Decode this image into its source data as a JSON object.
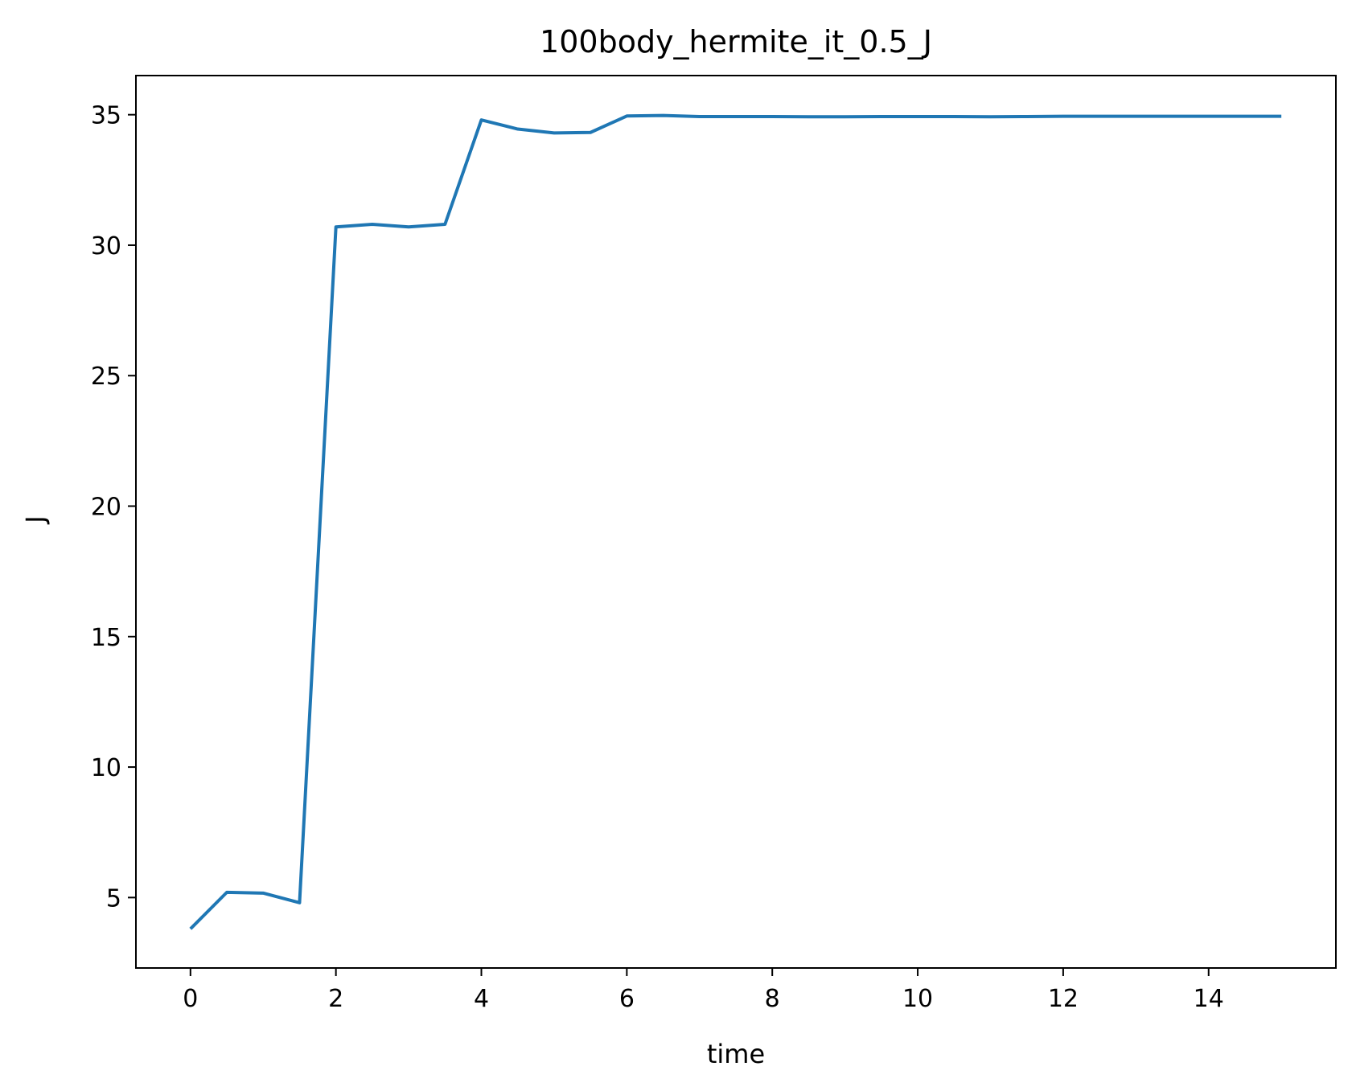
{
  "chart_data": {
    "type": "line",
    "title": "100body_hermite_it_0.5_J",
    "xlabel": "time",
    "ylabel": "J",
    "xlim": [
      -0.75,
      15.75
    ],
    "ylim": [
      2.3,
      36.5
    ],
    "xticks": [
      0,
      2,
      4,
      6,
      8,
      10,
      12,
      14
    ],
    "yticks": [
      5,
      10,
      15,
      20,
      25,
      30,
      35
    ],
    "grid": false,
    "series": [
      {
        "color": "#1f77b4",
        "x": [
          0,
          0.5,
          1,
          1.5,
          2,
          2.5,
          3,
          3.5,
          4,
          4.5,
          5,
          5.5,
          6,
          6.5,
          7,
          7.5,
          8,
          8.5,
          9,
          9.5,
          10,
          10.5,
          11,
          11.5,
          12,
          12.5,
          13,
          13.5,
          14,
          14.5,
          15
        ],
        "y": [
          3.8,
          5.2,
          5.17,
          4.8,
          30.7,
          30.8,
          30.7,
          30.8,
          34.8,
          34.45,
          34.3,
          34.32,
          34.95,
          34.97,
          34.93,
          34.93,
          34.93,
          34.92,
          34.92,
          34.93,
          34.93,
          34.93,
          34.92,
          34.93,
          34.94,
          34.94,
          34.94,
          34.94,
          34.94,
          34.94,
          34.94
        ]
      }
    ]
  }
}
